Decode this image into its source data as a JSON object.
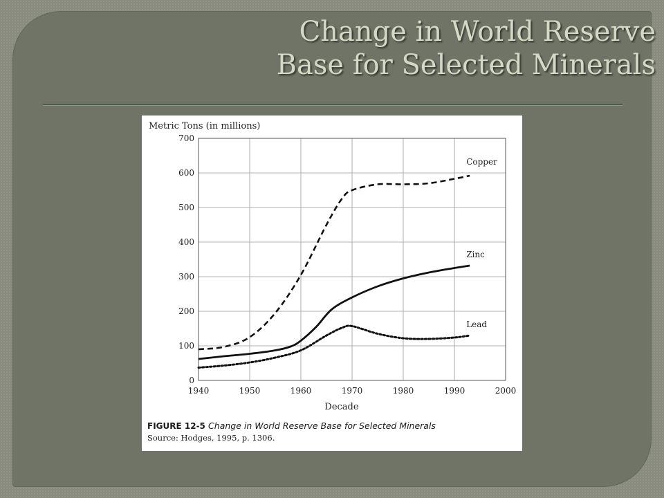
{
  "slide": {
    "title_line1": "Change in World Reserve",
    "title_line2": "Base for Selected Minerals"
  },
  "figure": {
    "caption_label": "FIGURE 12-5",
    "caption_text": "Change in World Reserve Base for Selected Minerals",
    "source": "Source: Hodges, 1995, p. 1306."
  },
  "chart_data": {
    "type": "line",
    "title": "",
    "xlabel": "Decade",
    "ylabel": "Metric Tons (in millions)",
    "xlim": [
      1940,
      2000
    ],
    "ylim": [
      0,
      700
    ],
    "x_ticks": [
      1940,
      1950,
      1960,
      1970,
      1980,
      1990,
      2000
    ],
    "y_ticks": [
      0,
      100,
      200,
      300,
      400,
      500,
      600,
      700
    ],
    "grid": true,
    "legend": "labels at line ends",
    "series": [
      {
        "name": "Copper",
        "style": "dashed",
        "x": [
          1940,
          1945,
          1950,
          1955,
          1960,
          1965,
          1968,
          1970,
          1975,
          1980,
          1985,
          1990,
          1993
        ],
        "y": [
          90,
          97,
          125,
          195,
          305,
          450,
          525,
          550,
          567,
          567,
          570,
          583,
          592
        ]
      },
      {
        "name": "Zinc",
        "style": "solid",
        "x": [
          1940,
          1945,
          1950,
          1955,
          1958,
          1960,
          1963,
          1966,
          1970,
          1975,
          1980,
          1985,
          1990,
          1993
        ],
        "y": [
          62,
          70,
          77,
          87,
          98,
          115,
          155,
          205,
          240,
          272,
          295,
          312,
          325,
          332
        ]
      },
      {
        "name": "Lead",
        "style": "dotted",
        "x": [
          1940,
          1945,
          1950,
          1955,
          1960,
          1965,
          1968,
          1970,
          1975,
          1980,
          1985,
          1990,
          1993
        ],
        "y": [
          37,
          43,
          52,
          66,
          87,
          130,
          152,
          157,
          135,
          122,
          120,
          124,
          130
        ]
      }
    ]
  }
}
